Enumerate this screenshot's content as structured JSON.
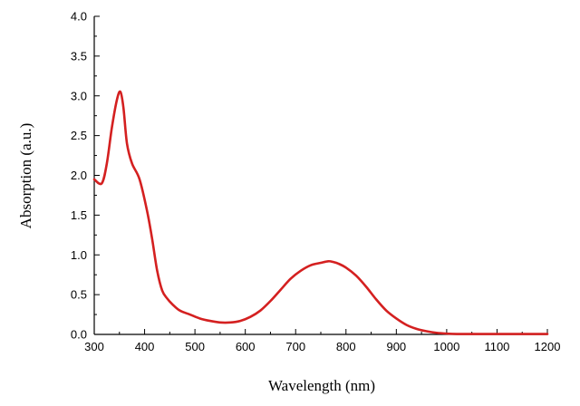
{
  "chart_data": {
    "type": "line",
    "xlabel": "Wavelength (nm)",
    "ylabel": "Absorption (a.u.)",
    "xlim": [
      300,
      1200
    ],
    "ylim": [
      0,
      4.0
    ],
    "x_ticks": [
      "300",
      "400",
      "500",
      "600",
      "700",
      "800",
      "900",
      "1000",
      "1100",
      "1200"
    ],
    "y_ticks": [
      "0.0",
      "0.5",
      "1.0",
      "1.5",
      "2.0",
      "2.5",
      "3.0",
      "3.5",
      "4.0"
    ],
    "x_tick_values": [
      300,
      400,
      500,
      600,
      700,
      800,
      900,
      1000,
      1100,
      1200
    ],
    "y_tick_values": [
      0,
      0.5,
      1.0,
      1.5,
      2.0,
      2.5,
      3.0,
      3.5,
      4.0
    ],
    "series": [
      {
        "color": "#d42020",
        "x": [
          300,
          315,
          325,
          335,
          345,
          352,
          358,
          365,
          375,
          390,
          405,
          415,
          425,
          435,
          445,
          455,
          470,
          490,
          510,
          530,
          550,
          570,
          590,
          610,
          630,
          650,
          670,
          690,
          710,
          730,
          750,
          765,
          775,
          785,
          800,
          820,
          840,
          860,
          880,
          900,
          920,
          940,
          960,
          980,
          1000,
          1020,
          1040,
          1060,
          1100,
          1150,
          1200
        ],
        "y": [
          1.95,
          1.9,
          2.15,
          2.6,
          2.95,
          3.05,
          2.85,
          2.4,
          2.15,
          1.95,
          1.55,
          1.2,
          0.8,
          0.55,
          0.45,
          0.38,
          0.3,
          0.25,
          0.2,
          0.17,
          0.15,
          0.15,
          0.17,
          0.22,
          0.3,
          0.42,
          0.56,
          0.7,
          0.8,
          0.87,
          0.9,
          0.92,
          0.91,
          0.89,
          0.84,
          0.74,
          0.6,
          0.44,
          0.3,
          0.2,
          0.12,
          0.07,
          0.04,
          0.02,
          0.01,
          0.005,
          0.005,
          0.005,
          0.005,
          0.005,
          0.005
        ]
      }
    ]
  }
}
